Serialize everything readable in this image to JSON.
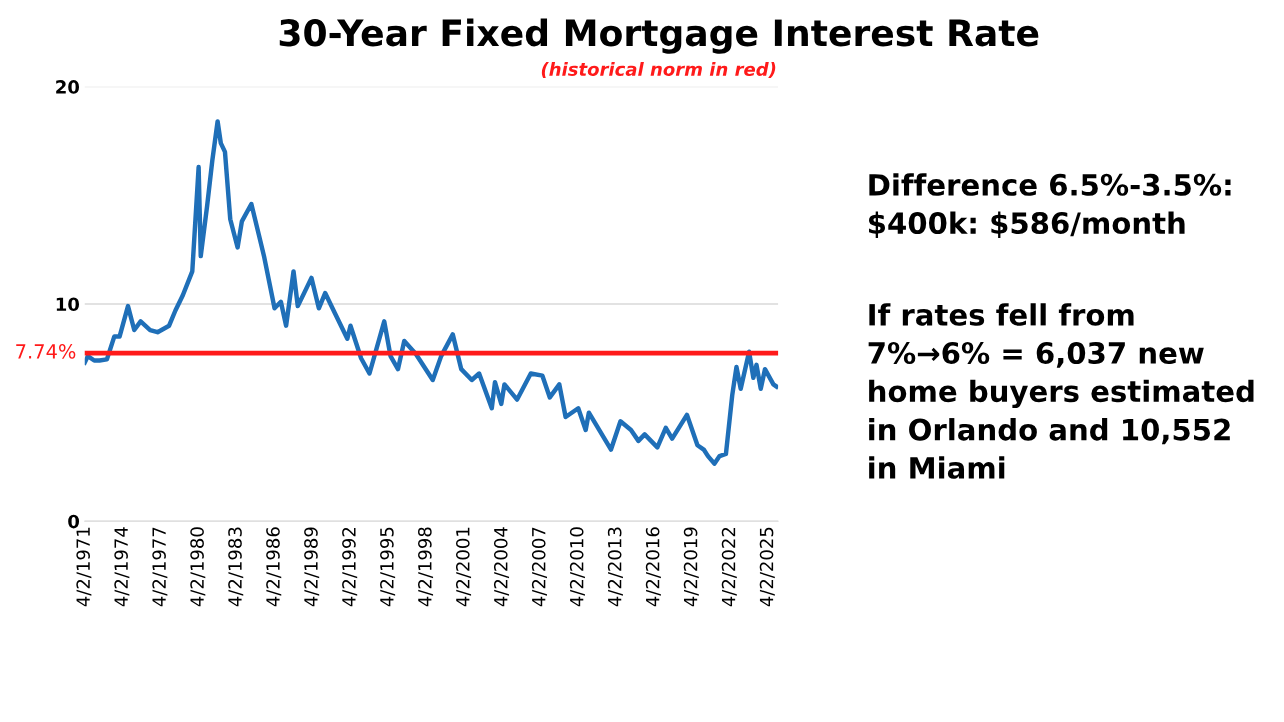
{
  "chart_data": {
    "type": "line",
    "title": "30-Year Fixed Mortgage Interest Rate",
    "subtitle": "(historical norm in red)",
    "x": [
      "1971-04-02",
      "1971-07-01",
      "1972-01-01",
      "1972-06-01",
      "1973-01-01",
      "1973-08-01",
      "1974-01-01",
      "1974-09-01",
      "1975-03-01",
      "1975-09-01",
      "1976-06-01",
      "1977-01-01",
      "1977-12-01",
      "1978-06-01",
      "1979-01-01",
      "1979-10-01",
      "1980-04-01",
      "1980-06-01",
      "1980-12-01",
      "1981-05-01",
      "1981-10-01",
      "1982-01-01",
      "1982-05-01",
      "1982-10-01",
      "1983-05-01",
      "1983-09-01",
      "1984-06-01",
      "1985-01-01",
      "1985-06-01",
      "1986-04-01",
      "1986-10-01",
      "1987-03-01",
      "1987-10-01",
      "1988-02-01",
      "1988-08-01",
      "1989-03-01",
      "1989-10-01",
      "1990-04-01",
      "1991-01-01",
      "1992-01-01",
      "1992-04-01",
      "1993-02-01",
      "1993-10-01",
      "1994-12-01",
      "1995-06-01",
      "1996-01-01",
      "1996-07-01",
      "1997-06-01",
      "1998-10-01",
      "1999-06-01",
      "2000-05-01",
      "2001-01-01",
      "2001-11-01",
      "2002-06-01",
      "2003-06-01",
      "2003-09-01",
      "2004-03-01",
      "2004-06-01",
      "2005-06-01",
      "2006-07-01",
      "2007-06-01",
      "2008-01-01",
      "2008-10-01",
      "2009-04-01",
      "2010-04-01",
      "2010-11-01",
      "2011-02-01",
      "2012-11-01",
      "2013-08-01",
      "2014-06-01",
      "2015-01-01",
      "2015-07-01",
      "2016-07-01",
      "2017-03-01",
      "2017-09-01",
      "2018-11-01",
      "2019-09-01",
      "2020-03-01",
      "2020-07-01",
      "2021-01-01",
      "2021-06-01",
      "2021-12-01",
      "2022-06-01",
      "2022-10-01",
      "2023-02-01",
      "2023-10-01",
      "2024-02-01",
      "2024-05-01",
      "2024-09-01",
      "2025-01-01",
      "2025-09-01",
      "2025-12-01"
    ],
    "series": [
      {
        "color": "#1f6fb8",
        "values": [
          7.3,
          7.6,
          7.4,
          7.4,
          7.45,
          8.5,
          8.5,
          9.9,
          8.8,
          9.2,
          8.8,
          8.7,
          9.0,
          9.7,
          10.4,
          11.5,
          16.3,
          12.2,
          14.5,
          16.6,
          18.4,
          17.4,
          17.0,
          13.9,
          12.6,
          13.8,
          14.6,
          13.2,
          12.2,
          9.8,
          10.1,
          9.0,
          11.5,
          9.9,
          10.5,
          11.2,
          9.8,
          10.5,
          9.6,
          8.4,
          9.0,
          7.5,
          6.8,
          9.2,
          7.6,
          7.0,
          8.3,
          7.7,
          6.5,
          7.6,
          8.6,
          7.0,
          6.5,
          6.8,
          5.2,
          6.4,
          5.4,
          6.3,
          5.6,
          6.8,
          6.7,
          5.7,
          6.3,
          4.8,
          5.2,
          4.2,
          5.0,
          3.3,
          4.6,
          4.2,
          3.7,
          4.0,
          3.4,
          4.3,
          3.8,
          4.9,
          3.5,
          3.3,
          3.0,
          2.65,
          3.0,
          3.1,
          5.8,
          7.1,
          6.1,
          7.8,
          6.6,
          7.2,
          6.1,
          7.0,
          6.3,
          6.2
        ]
      }
    ],
    "xlim": [
      "1971-04-02",
      "2026-01-15"
    ],
    "xticks": [
      {
        "value": "1971-04-02",
        "label": "4/2/1971"
      },
      {
        "value": "1974-04-02",
        "label": "4/2/1974"
      },
      {
        "value": "1977-04-02",
        "label": "4/2/1977"
      },
      {
        "value": "1980-04-02",
        "label": "4/2/1980"
      },
      {
        "value": "1983-04-02",
        "label": "4/2/1983"
      },
      {
        "value": "1986-04-02",
        "label": "4/2/1986"
      },
      {
        "value": "1989-04-02",
        "label": "4/2/1989"
      },
      {
        "value": "1992-04-02",
        "label": "4/2/1992"
      },
      {
        "value": "1995-04-02",
        "label": "4/2/1995"
      },
      {
        "value": "1998-04-02",
        "label": "4/2/1998"
      },
      {
        "value": "2001-04-02",
        "label": "4/2/2001"
      },
      {
        "value": "2004-04-02",
        "label": "4/2/2004"
      },
      {
        "value": "2007-04-02",
        "label": "4/2/2007"
      },
      {
        "value": "2010-04-02",
        "label": "4/2/2010"
      },
      {
        "value": "2013-04-02",
        "label": "4/2/2013"
      },
      {
        "value": "2016-04-02",
        "label": "4/2/2016"
      },
      {
        "value": "2019-04-02",
        "label": "4/2/2019"
      },
      {
        "value": "2022-04-02",
        "label": "4/2/2022"
      },
      {
        "value": "2025-04-02",
        "label": "4/2/2025"
      }
    ],
    "ylim": [
      0,
      20
    ],
    "yticks": [
      0,
      10,
      20
    ],
    "grid": "y",
    "legend": false,
    "ref_lines": [
      {
        "axis": "y",
        "value": 7.74,
        "label": "7.74%",
        "color": "#ff1a1a"
      }
    ],
    "annotations": [
      "Difference 6.5%-3.5%:\n$400k: $586/month",
      "If rates fell from\n7%→6% = 6,037 new\nhome buyers estimated\nin Orlando and 10,552\nin Miami"
    ]
  }
}
